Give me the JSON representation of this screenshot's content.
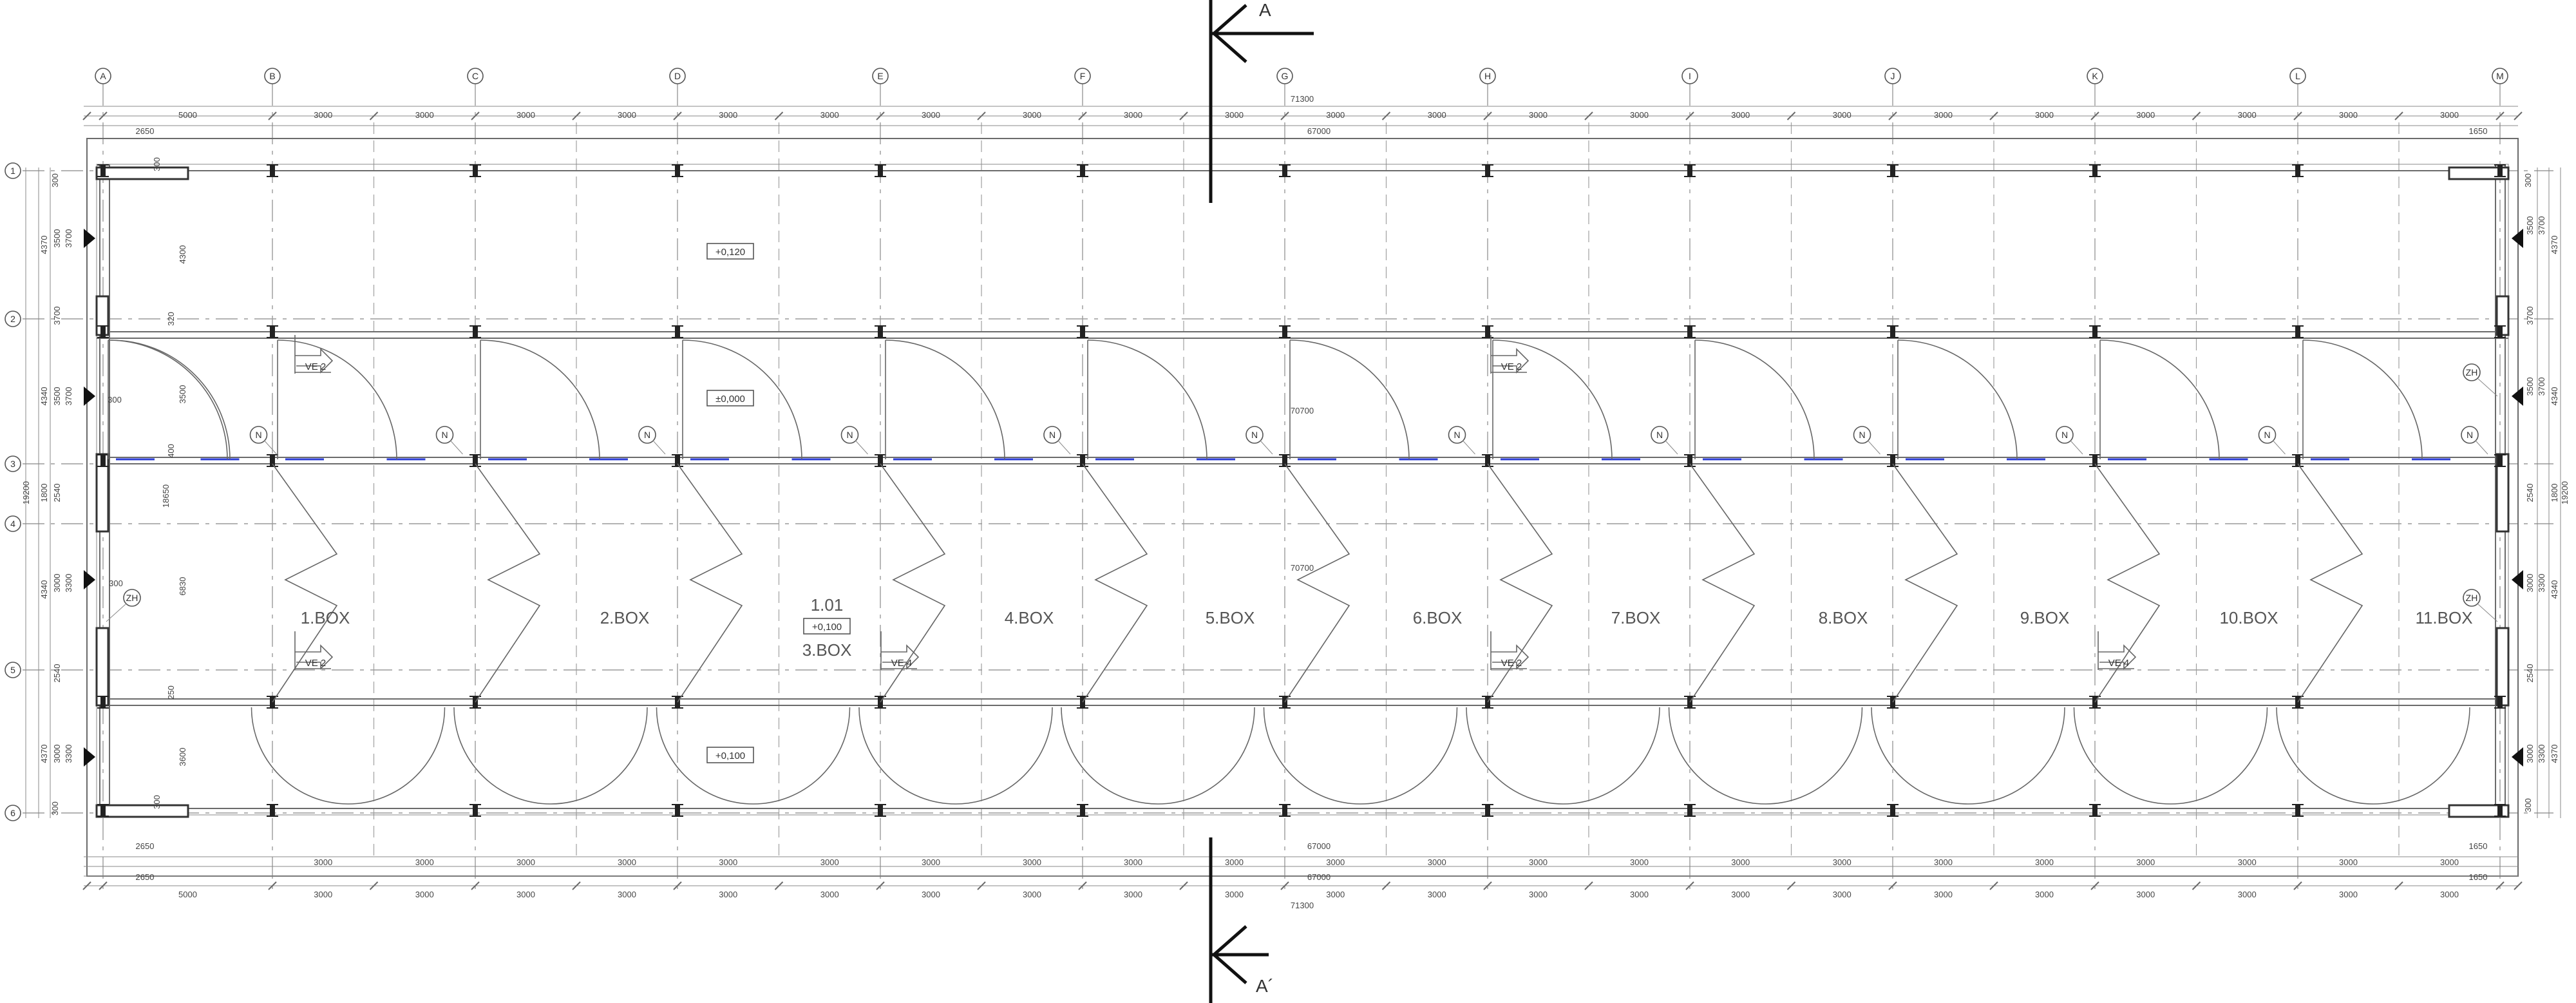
{
  "section_marks": {
    "top": "A",
    "bottom": "A´"
  },
  "axes_x": [
    "A",
    "B",
    "C",
    "D",
    "E",
    "F",
    "G",
    "H",
    "I",
    "J",
    "K",
    "L",
    "M"
  ],
  "axes_y": [
    "1",
    "2",
    "3",
    "4",
    "5",
    "6"
  ],
  "dims_top": {
    "total": "71300",
    "interior": "67000",
    "left_offset": "2650",
    "right_offset": "1650",
    "first_bay": "5000",
    "bay": "3000"
  },
  "dims_bottom": {
    "total": "71300",
    "interior_a": "67000",
    "interior_b": "67000",
    "left_offset_a": "2650",
    "left_offset_b": "2650",
    "right_offset_a": "1650",
    "right_offset_b": "1650",
    "first_bay": "5000",
    "bay": "3000"
  },
  "dims_left": {
    "d1": "300",
    "d2": "3500",
    "d3": "3700",
    "d4": "4370",
    "d5": "3700",
    "d6": "3500",
    "d7": "4340",
    "d8": "19200",
    "d9": "1800",
    "d10": "2540",
    "d11": "3000",
    "d12": "3300",
    "d13": "4340",
    "d14": "2540",
    "d15": "3300",
    "d16": "3000",
    "d17": "4370",
    "d18": "300"
  },
  "dims_inner": {
    "a": "300",
    "b": "4300",
    "c": "320",
    "d": "3500",
    "e": "300",
    "f": "400",
    "g": "18650",
    "h": "6830",
    "i": "300",
    "j": "250",
    "k": "3600",
    "l": "300",
    "m": "70700",
    "n": "70700"
  },
  "levels": [
    "+0,120",
    "±0,000",
    "+0,100",
    "+0,100"
  ],
  "room_number": "1.01",
  "rooms": [
    "1.BOX",
    "2.BOX",
    "3.BOX",
    "4.BOX",
    "5.BOX",
    "6.BOX",
    "7.BOX",
    "8.BOX",
    "9.BOX",
    "10.BOX",
    "11.BOX"
  ],
  "ve_tags": [
    "VE 2",
    "VE 2",
    "VE 2",
    "VE 4",
    "VE 2",
    "VE 4"
  ],
  "n_tag": "N",
  "zh_tag": "ZH"
}
